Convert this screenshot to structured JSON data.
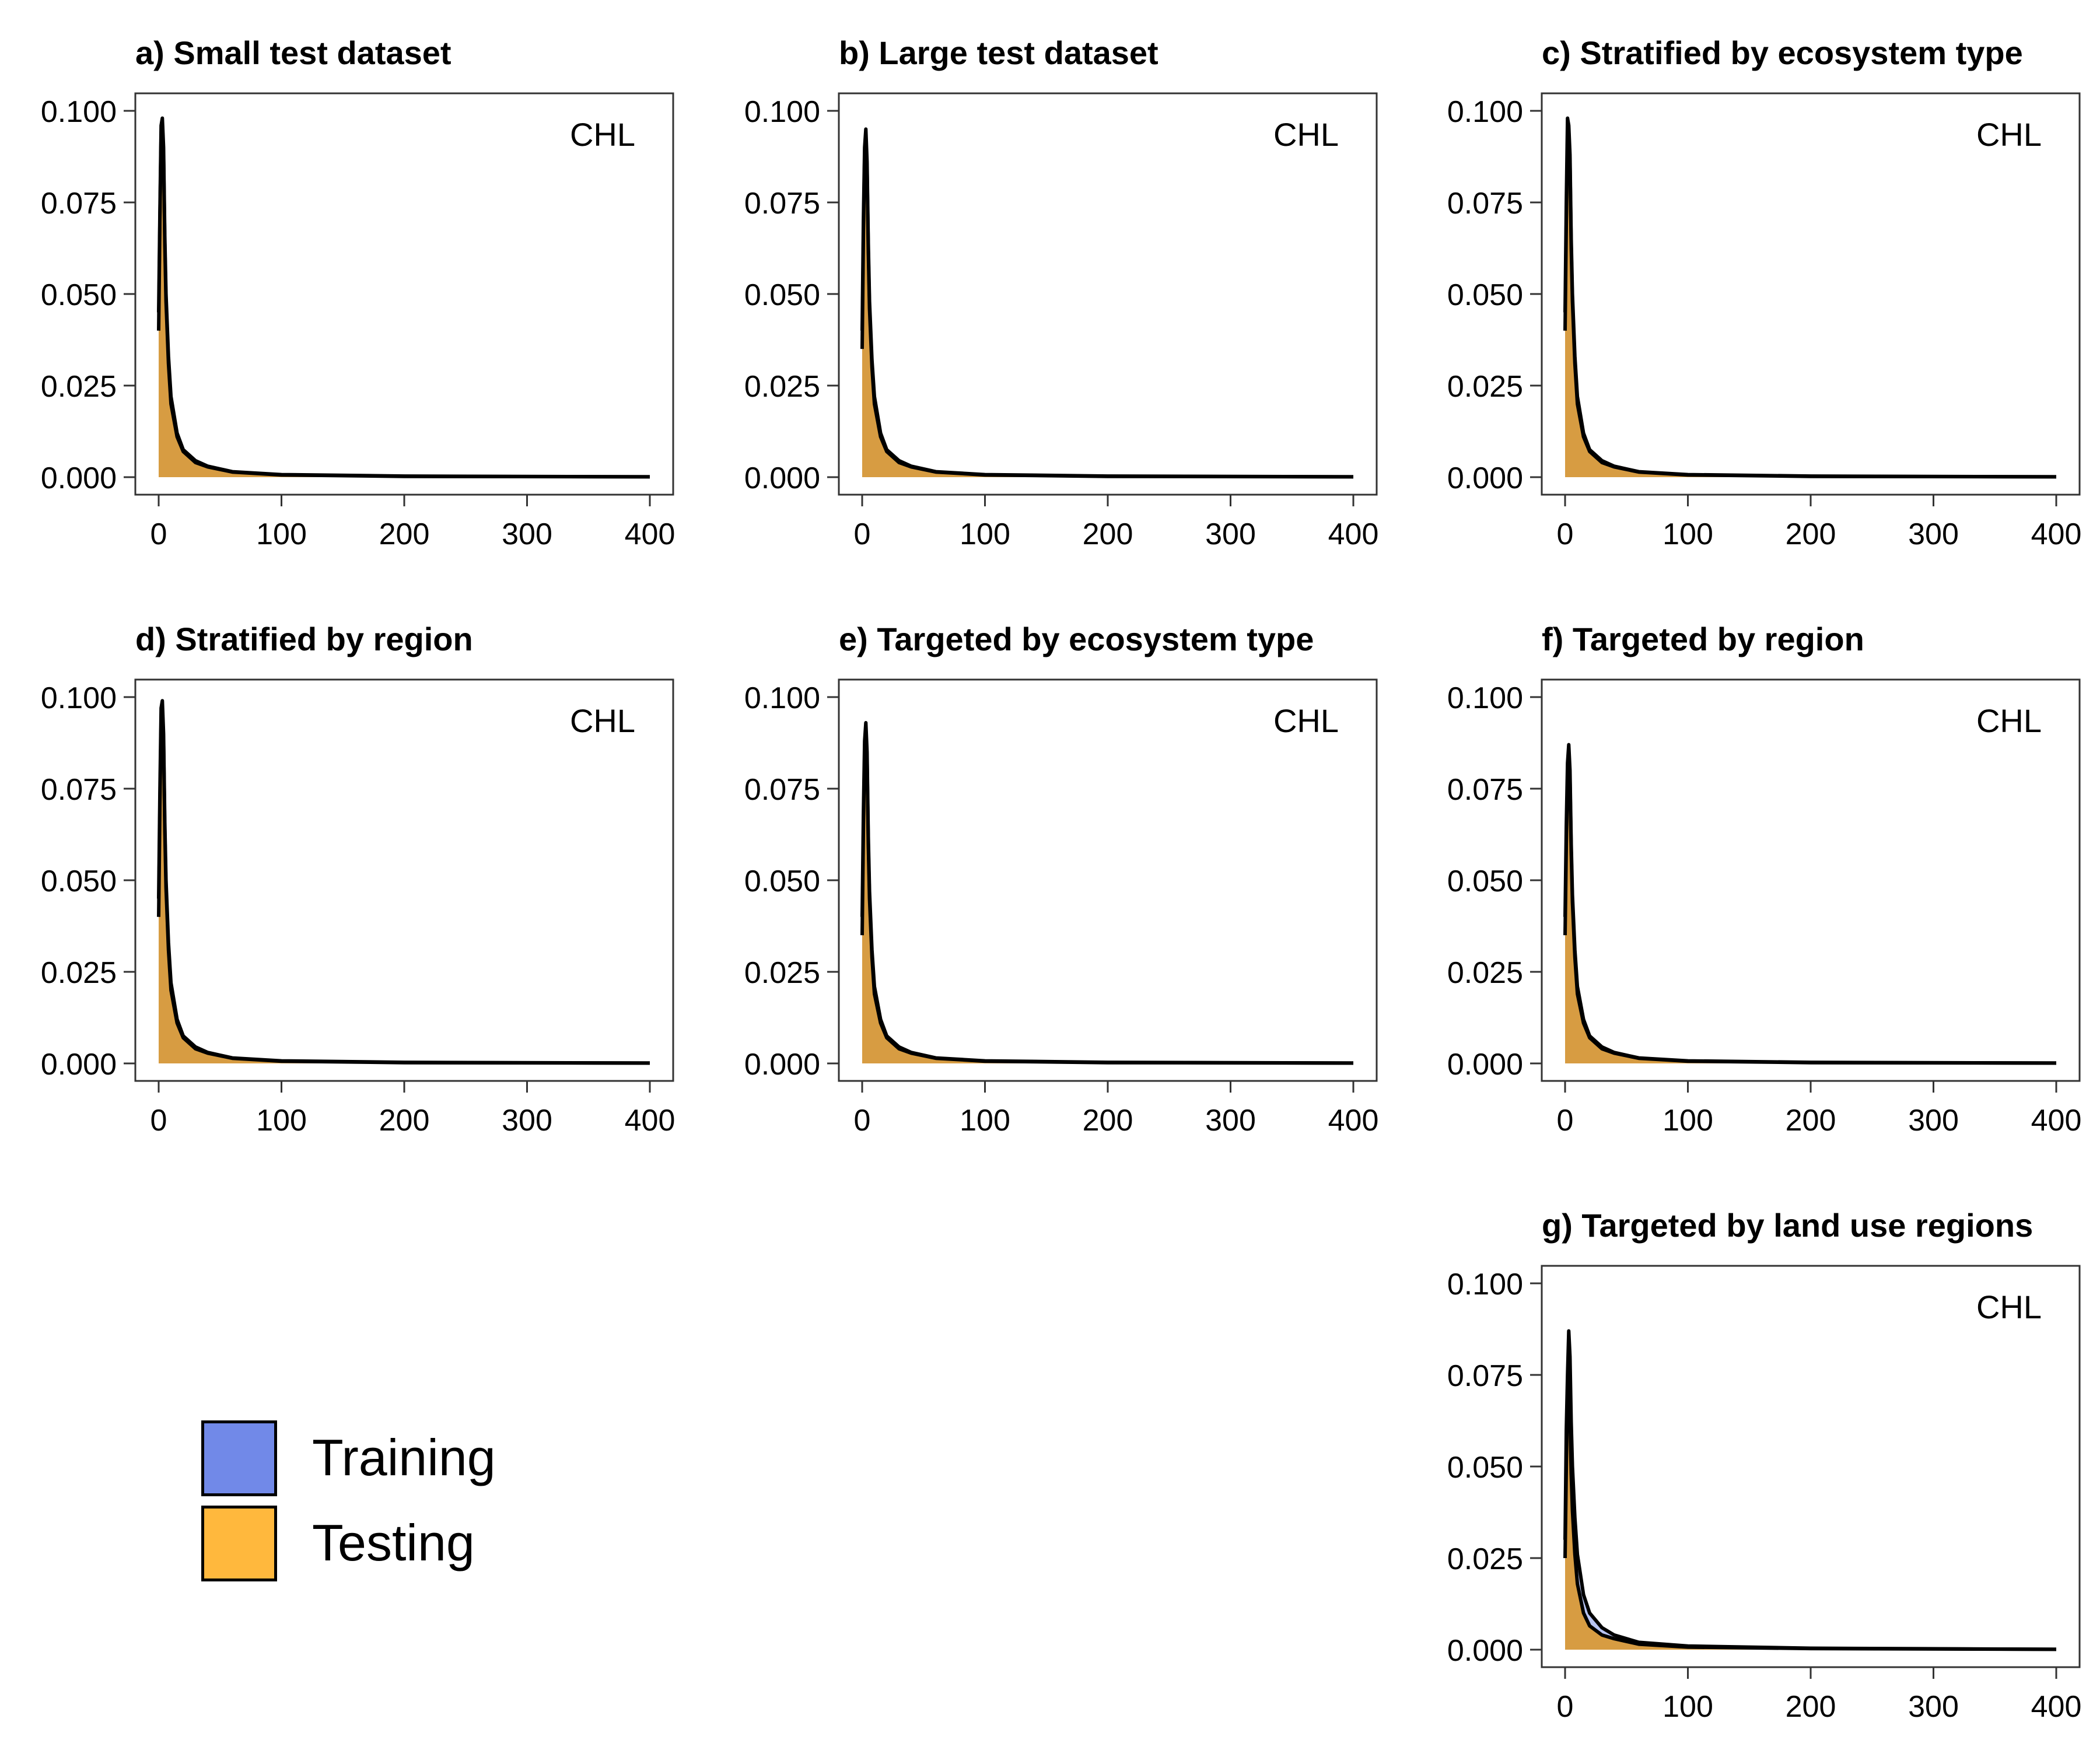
{
  "colors": {
    "training": "#7189e8",
    "testing": "#ffb83d",
    "testing_overlap": "#d89a38",
    "line": "#000000"
  },
  "legend": {
    "items": [
      {
        "label": "Training",
        "color": "#7189e8"
      },
      {
        "label": "Testing",
        "color": "#ffb83d"
      }
    ]
  },
  "chart_data": [
    {
      "type": "area",
      "title": "a) Small test dataset",
      "annotation": "CHL",
      "xlim": [
        0,
        400
      ],
      "ylim": [
        0,
        0.1
      ],
      "xticks": [
        0,
        100,
        200,
        300,
        400
      ],
      "yticks": [
        0,
        0.025,
        0.05,
        0.075,
        0.1
      ],
      "xtick_labels": [
        "0",
        "100",
        "200",
        "300",
        "400"
      ],
      "ytick_labels": [
        "0.000",
        "0.025",
        "0.050",
        "0.075",
        "0.100"
      ],
      "series": [
        {
          "name": "Training",
          "x": [
            0,
            1,
            2,
            3,
            4,
            5,
            6,
            8,
            10,
            15,
            20,
            30,
            40,
            60,
            100,
            200,
            400
          ],
          "y": [
            0.045,
            0.072,
            0.096,
            0.098,
            0.09,
            0.066,
            0.05,
            0.033,
            0.022,
            0.012,
            0.0075,
            0.0045,
            0.003,
            0.0015,
            0.0007,
            0.0003,
            0.0001
          ]
        },
        {
          "name": "Testing",
          "x": [
            0,
            1,
            2,
            3,
            4,
            5,
            6,
            8,
            10,
            15,
            20,
            30,
            40,
            60,
            100,
            200,
            400
          ],
          "y": [
            0.04,
            0.07,
            0.094,
            0.097,
            0.088,
            0.064,
            0.048,
            0.031,
            0.02,
            0.011,
            0.007,
            0.004,
            0.0028,
            0.0014,
            0.0006,
            0.0002,
            0.0001
          ]
        }
      ]
    },
    {
      "type": "area",
      "title": "b) Large test dataset",
      "annotation": "CHL",
      "xlim": [
        0,
        400
      ],
      "ylim": [
        0,
        0.1
      ],
      "xticks": [
        0,
        100,
        200,
        300,
        400
      ],
      "yticks": [
        0,
        0.025,
        0.05,
        0.075,
        0.1
      ],
      "xtick_labels": [
        "0",
        "100",
        "200",
        "300",
        "400"
      ],
      "ytick_labels": [
        "0.000",
        "0.025",
        "0.050",
        "0.075",
        "0.100"
      ],
      "series": [
        {
          "name": "Training",
          "x": [
            0,
            1,
            2,
            3,
            4,
            5,
            6,
            8,
            10,
            15,
            20,
            30,
            40,
            60,
            100,
            200,
            400
          ],
          "y": [
            0.04,
            0.07,
            0.09,
            0.095,
            0.086,
            0.064,
            0.048,
            0.032,
            0.022,
            0.012,
            0.0075,
            0.0045,
            0.003,
            0.0015,
            0.0007,
            0.0003,
            0.0001
          ]
        },
        {
          "name": "Testing",
          "x": [
            0,
            1,
            2,
            3,
            4,
            5,
            6,
            8,
            10,
            15,
            20,
            30,
            40,
            60,
            100,
            200,
            400
          ],
          "y": [
            0.035,
            0.066,
            0.088,
            0.093,
            0.084,
            0.062,
            0.046,
            0.03,
            0.02,
            0.011,
            0.007,
            0.004,
            0.0028,
            0.0014,
            0.0006,
            0.0002,
            0.0001
          ]
        }
      ]
    },
    {
      "type": "area",
      "title": "c) Stratified by ecosystem type",
      "annotation": "CHL",
      "xlim": [
        0,
        400
      ],
      "ylim": [
        0,
        0.1
      ],
      "xticks": [
        0,
        100,
        200,
        300,
        400
      ],
      "yticks": [
        0,
        0.025,
        0.05,
        0.075,
        0.1
      ],
      "xtick_labels": [
        "0",
        "100",
        "200",
        "300",
        "400"
      ],
      "ytick_labels": [
        "0.000",
        "0.025",
        "0.050",
        "0.075",
        "0.100"
      ],
      "series": [
        {
          "name": "Training",
          "x": [
            0,
            1,
            2,
            3,
            4,
            5,
            6,
            8,
            10,
            15,
            20,
            30,
            40,
            60,
            100,
            200,
            400
          ],
          "y": [
            0.045,
            0.075,
            0.098,
            0.096,
            0.088,
            0.065,
            0.05,
            0.033,
            0.022,
            0.012,
            0.0075,
            0.0045,
            0.003,
            0.0015,
            0.0007,
            0.0003,
            0.0001
          ]
        },
        {
          "name": "Testing",
          "x": [
            0,
            1,
            2,
            3,
            4,
            5,
            6,
            8,
            10,
            15,
            20,
            30,
            40,
            60,
            100,
            200,
            400
          ],
          "y": [
            0.04,
            0.07,
            0.094,
            0.094,
            0.086,
            0.063,
            0.048,
            0.031,
            0.02,
            0.011,
            0.007,
            0.004,
            0.0028,
            0.0014,
            0.0006,
            0.0002,
            0.0001
          ]
        }
      ]
    },
    {
      "type": "area",
      "title": "d) Stratified by region",
      "annotation": "CHL",
      "xlim": [
        0,
        400
      ],
      "ylim": [
        0,
        0.1
      ],
      "xticks": [
        0,
        100,
        200,
        300,
        400
      ],
      "yticks": [
        0,
        0.025,
        0.05,
        0.075,
        0.1
      ],
      "xtick_labels": [
        "0",
        "100",
        "200",
        "300",
        "400"
      ],
      "ytick_labels": [
        "0.000",
        "0.025",
        "0.050",
        "0.075",
        "0.100"
      ],
      "series": [
        {
          "name": "Training",
          "x": [
            0,
            1,
            2,
            3,
            4,
            5,
            6,
            8,
            10,
            15,
            20,
            30,
            40,
            60,
            100,
            200,
            400
          ],
          "y": [
            0.045,
            0.074,
            0.097,
            0.099,
            0.09,
            0.066,
            0.05,
            0.033,
            0.022,
            0.012,
            0.0075,
            0.0045,
            0.003,
            0.0015,
            0.0007,
            0.0003,
            0.0001
          ]
        },
        {
          "name": "Testing",
          "x": [
            0,
            1,
            2,
            3,
            4,
            5,
            6,
            8,
            10,
            15,
            20,
            30,
            40,
            60,
            100,
            200,
            400
          ],
          "y": [
            0.04,
            0.07,
            0.094,
            0.097,
            0.088,
            0.064,
            0.048,
            0.031,
            0.02,
            0.011,
            0.007,
            0.004,
            0.0028,
            0.0014,
            0.0006,
            0.0002,
            0.0001
          ]
        }
      ]
    },
    {
      "type": "area",
      "title": "e) Targeted by ecosystem type",
      "annotation": "CHL",
      "xlim": [
        0,
        400
      ],
      "ylim": [
        0,
        0.1
      ],
      "xticks": [
        0,
        100,
        200,
        300,
        400
      ],
      "yticks": [
        0,
        0.025,
        0.05,
        0.075,
        0.1
      ],
      "xtick_labels": [
        "0",
        "100",
        "200",
        "300",
        "400"
      ],
      "ytick_labels": [
        "0.000",
        "0.025",
        "0.050",
        "0.075",
        "0.100"
      ],
      "series": [
        {
          "name": "Training",
          "x": [
            0,
            1,
            2,
            3,
            4,
            5,
            6,
            8,
            10,
            15,
            20,
            30,
            40,
            60,
            100,
            200,
            400
          ],
          "y": [
            0.04,
            0.068,
            0.088,
            0.093,
            0.085,
            0.062,
            0.047,
            0.031,
            0.021,
            0.012,
            0.0075,
            0.0045,
            0.003,
            0.0015,
            0.0007,
            0.0003,
            0.0001
          ]
        },
        {
          "name": "Testing",
          "x": [
            0,
            1,
            2,
            3,
            4,
            5,
            6,
            8,
            10,
            15,
            20,
            30,
            40,
            60,
            100,
            200,
            400
          ],
          "y": [
            0.035,
            0.064,
            0.085,
            0.091,
            0.083,
            0.06,
            0.045,
            0.029,
            0.019,
            0.011,
            0.007,
            0.004,
            0.0028,
            0.0014,
            0.0006,
            0.0002,
            0.0001
          ]
        }
      ]
    },
    {
      "type": "area",
      "title": "f) Targeted by region",
      "annotation": "CHL",
      "xlim": [
        0,
        400
      ],
      "ylim": [
        0,
        0.1
      ],
      "xticks": [
        0,
        100,
        200,
        300,
        400
      ],
      "yticks": [
        0,
        0.025,
        0.05,
        0.075,
        0.1
      ],
      "xtick_labels": [
        "0",
        "100",
        "200",
        "300",
        "400"
      ],
      "ytick_labels": [
        "0.000",
        "0.025",
        "0.050",
        "0.075",
        "0.100"
      ],
      "series": [
        {
          "name": "Training",
          "x": [
            0,
            1,
            2,
            3,
            4,
            5,
            6,
            8,
            10,
            15,
            20,
            30,
            40,
            60,
            100,
            200,
            400
          ],
          "y": [
            0.04,
            0.065,
            0.082,
            0.087,
            0.08,
            0.06,
            0.046,
            0.031,
            0.021,
            0.012,
            0.0075,
            0.0045,
            0.003,
            0.0015,
            0.0007,
            0.0003,
            0.0001
          ]
        },
        {
          "name": "Testing",
          "x": [
            0,
            1,
            2,
            3,
            4,
            5,
            6,
            8,
            10,
            15,
            20,
            30,
            40,
            60,
            100,
            200,
            400
          ],
          "y": [
            0.035,
            0.06,
            0.076,
            0.084,
            0.078,
            0.058,
            0.044,
            0.029,
            0.019,
            0.011,
            0.007,
            0.004,
            0.0028,
            0.0014,
            0.0006,
            0.0002,
            0.0001
          ]
        }
      ]
    },
    {
      "type": "area",
      "title": "g) Targeted by land use regions",
      "annotation": "CHL",
      "xlim": [
        0,
        400
      ],
      "ylim": [
        0,
        0.1
      ],
      "xticks": [
        0,
        100,
        200,
        300,
        400
      ],
      "yticks": [
        0,
        0.025,
        0.05,
        0.075,
        0.1
      ],
      "xtick_labels": [
        "0",
        "100",
        "200",
        "300",
        "400"
      ],
      "ytick_labels": [
        "0.000",
        "0.025",
        "0.050",
        "0.075",
        "0.100"
      ],
      "series": [
        {
          "name": "Training",
          "x": [
            0,
            1,
            2,
            3,
            4,
            5,
            6,
            8,
            10,
            15,
            20,
            30,
            40,
            60,
            100,
            200,
            400
          ],
          "y": [
            0.03,
            0.06,
            0.075,
            0.087,
            0.08,
            0.062,
            0.05,
            0.036,
            0.026,
            0.015,
            0.01,
            0.006,
            0.004,
            0.002,
            0.001,
            0.0004,
            0.0001
          ]
        },
        {
          "name": "Testing",
          "x": [
            0,
            1,
            2,
            3,
            4,
            5,
            6,
            8,
            10,
            15,
            20,
            30,
            40,
            60,
            100,
            200,
            400
          ],
          "y": [
            0.025,
            0.05,
            0.07,
            0.079,
            0.065,
            0.048,
            0.038,
            0.026,
            0.018,
            0.01,
            0.0065,
            0.004,
            0.003,
            0.0015,
            0.0007,
            0.0003,
            0.0001
          ]
        }
      ]
    }
  ]
}
